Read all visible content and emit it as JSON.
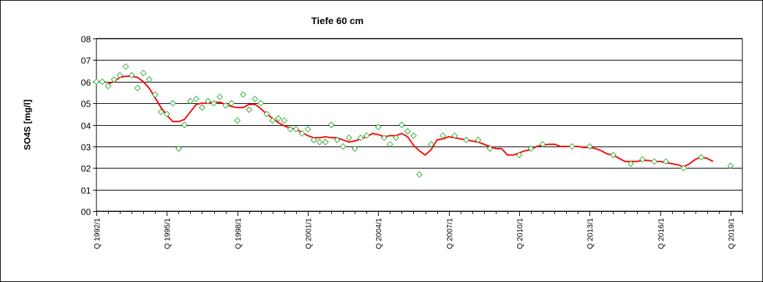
{
  "chart_data": {
    "type": "line",
    "title": "Tiefe  60 cm",
    "ylabel": "SO4S [mg/l]",
    "xlabel": "",
    "ylim": [
      0,
      8
    ],
    "y_tick_labels": [
      "00",
      "01",
      "02",
      "03",
      "04",
      "05",
      "06",
      "07",
      "08"
    ],
    "x_tick_labels": [
      "Q 1992/1",
      "Q 1995/1",
      "Q 1998/1",
      "Q 2001/1",
      "Q 2004/1",
      "Q 2007/1",
      "Q 2010/1",
      "Q 2013/1",
      "Q 2016/1",
      "Q 2019/1"
    ],
    "x_tick_quarters": [
      0,
      12,
      24,
      36,
      48,
      60,
      72,
      84,
      96,
      108
    ],
    "x_quarter_range": [
      0,
      110
    ],
    "grid": true,
    "legend": "none",
    "colors": {
      "trend": "#ff0000",
      "points": "#33aa33",
      "grid": "#000000"
    },
    "series": [
      {
        "type": "scatter",
        "marker": "diamond",
        "points": [
          [
            0,
            6.0
          ],
          [
            1,
            6.0
          ],
          [
            2,
            5.8
          ],
          [
            3,
            6.1
          ],
          [
            4,
            6.3
          ],
          [
            5,
            6.7
          ],
          [
            6,
            6.3
          ],
          [
            7,
            5.7
          ],
          [
            8,
            6.4
          ],
          [
            9,
            6.1
          ],
          [
            10,
            5.4
          ],
          [
            11,
            4.6
          ],
          [
            12,
            4.5
          ],
          [
            13,
            5.0
          ],
          [
            14,
            2.9
          ],
          [
            15,
            4.0
          ],
          [
            16,
            5.1
          ],
          [
            17,
            5.2
          ],
          [
            18,
            4.8
          ],
          [
            19,
            5.1
          ],
          [
            20,
            5.0
          ],
          [
            21,
            5.3
          ],
          [
            22,
            4.9
          ],
          [
            23,
            5.0
          ],
          [
            24,
            4.2
          ],
          [
            25,
            5.4
          ],
          [
            26,
            4.7
          ],
          [
            27,
            5.2
          ],
          [
            28,
            5.0
          ],
          [
            29,
            4.5
          ],
          [
            30,
            4.2
          ],
          [
            31,
            4.3
          ],
          [
            32,
            4.2
          ],
          [
            33,
            3.8
          ],
          [
            34,
            3.8
          ],
          [
            35,
            3.6
          ],
          [
            36,
            3.8
          ],
          [
            37,
            3.3
          ],
          [
            38,
            3.2
          ],
          [
            39,
            3.2
          ],
          [
            40,
            4.0
          ],
          [
            41,
            3.3
          ],
          [
            42,
            3.0
          ],
          [
            43,
            3.4
          ],
          [
            44,
            2.9
          ],
          [
            45,
            3.4
          ],
          [
            46,
            3.5
          ],
          [
            48,
            3.9
          ],
          [
            49,
            3.4
          ],
          [
            50,
            3.1
          ],
          [
            51,
            3.4
          ],
          [
            52,
            4.0
          ],
          [
            53,
            3.7
          ],
          [
            54,
            3.5
          ],
          [
            55,
            1.7
          ],
          [
            57,
            3.1
          ],
          [
            59,
            3.5
          ],
          [
            61,
            3.5
          ],
          [
            63,
            3.3
          ],
          [
            65,
            3.3
          ],
          [
            67,
            2.9
          ],
          [
            72,
            2.6
          ],
          [
            74,
            2.9
          ],
          [
            76,
            3.1
          ],
          [
            81,
            3.0
          ],
          [
            84,
            3.0
          ],
          [
            88,
            2.6
          ],
          [
            91,
            2.2
          ],
          [
            93,
            2.4
          ],
          [
            95,
            2.3
          ],
          [
            97,
            2.3
          ],
          [
            100,
            2.0
          ],
          [
            103,
            2.5
          ],
          [
            108,
            2.1
          ]
        ]
      },
      {
        "type": "line",
        "points": [
          [
            2,
            5.9
          ],
          [
            3,
            6.0
          ],
          [
            4,
            6.2
          ],
          [
            5,
            6.25
          ],
          [
            6,
            6.25
          ],
          [
            7,
            6.2
          ],
          [
            8,
            6.0
          ],
          [
            9,
            5.7
          ],
          [
            10,
            5.25
          ],
          [
            11,
            4.8
          ],
          [
            12,
            4.45
          ],
          [
            13,
            4.15
          ],
          [
            14,
            4.15
          ],
          [
            15,
            4.25
          ],
          [
            16,
            4.6
          ],
          [
            17,
            4.95
          ],
          [
            18,
            5.0
          ],
          [
            19,
            5.0
          ],
          [
            20,
            5.05
          ],
          [
            21,
            5.05
          ],
          [
            22,
            4.95
          ],
          [
            23,
            4.85
          ],
          [
            24,
            4.8
          ],
          [
            25,
            4.8
          ],
          [
            26,
            4.95
          ],
          [
            27,
            4.95
          ],
          [
            28,
            4.75
          ],
          [
            29,
            4.5
          ],
          [
            30,
            4.3
          ],
          [
            31,
            4.1
          ],
          [
            32,
            3.95
          ],
          [
            33,
            3.85
          ],
          [
            34,
            3.8
          ],
          [
            35,
            3.65
          ],
          [
            36,
            3.5
          ],
          [
            37,
            3.4
          ],
          [
            38,
            3.4
          ],
          [
            39,
            3.45
          ],
          [
            40,
            3.4
          ],
          [
            41,
            3.4
          ],
          [
            42,
            3.3
          ],
          [
            43,
            3.2
          ],
          [
            44,
            3.25
          ],
          [
            45,
            3.35
          ],
          [
            46,
            3.45
          ],
          [
            47,
            3.6
          ],
          [
            48,
            3.55
          ],
          [
            49,
            3.45
          ],
          [
            50,
            3.5
          ],
          [
            51,
            3.5
          ],
          [
            52,
            3.6
          ],
          [
            53,
            3.45
          ],
          [
            54,
            3.05
          ],
          [
            55,
            2.8
          ],
          [
            56,
            2.6
          ],
          [
            57,
            2.85
          ],
          [
            58,
            3.3
          ],
          [
            59,
            3.35
          ],
          [
            60,
            3.45
          ],
          [
            61,
            3.4
          ],
          [
            62,
            3.35
          ],
          [
            63,
            3.3
          ],
          [
            64,
            3.25
          ],
          [
            65,
            3.2
          ],
          [
            66,
            3.1
          ],
          [
            67,
            3.0
          ],
          [
            68,
            2.9
          ],
          [
            69,
            2.9
          ],
          [
            70,
            2.6
          ],
          [
            71,
            2.6
          ],
          [
            72,
            2.7
          ],
          [
            73,
            2.8
          ],
          [
            74,
            2.85
          ],
          [
            75,
            3.0
          ],
          [
            76,
            3.05
          ],
          [
            77,
            3.1
          ],
          [
            78,
            3.1
          ],
          [
            79,
            3.0
          ],
          [
            80,
            3.0
          ],
          [
            81,
            3.0
          ],
          [
            82,
            3.0
          ],
          [
            83,
            2.95
          ],
          [
            84,
            2.95
          ],
          [
            85,
            2.9
          ],
          [
            86,
            2.8
          ],
          [
            87,
            2.65
          ],
          [
            88,
            2.6
          ],
          [
            89,
            2.45
          ],
          [
            90,
            2.3
          ],
          [
            91,
            2.3
          ],
          [
            92,
            2.3
          ],
          [
            93,
            2.35
          ],
          [
            94,
            2.35
          ],
          [
            95,
            2.3
          ],
          [
            96,
            2.3
          ],
          [
            97,
            2.25
          ],
          [
            98,
            2.2
          ],
          [
            99,
            2.15
          ],
          [
            100,
            2.05
          ],
          [
            101,
            2.2
          ],
          [
            102,
            2.4
          ],
          [
            103,
            2.5
          ],
          [
            104,
            2.45
          ],
          [
            105,
            2.3
          ]
        ]
      }
    ]
  }
}
